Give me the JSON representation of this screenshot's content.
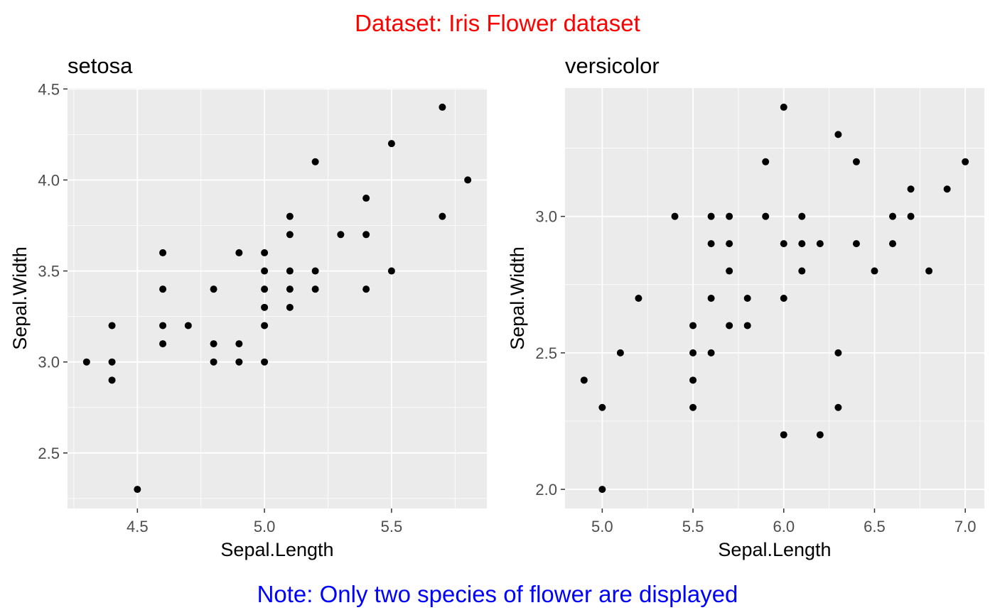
{
  "figure": {
    "title": "Dataset: Iris Flower dataset",
    "caption": "Note: Only two species of flower are displayed",
    "title_color": "#ff0000",
    "caption_color": "#0000ff",
    "panel_bg": "#ebebeb",
    "grid_color": "#ffffff",
    "point_color": "#000000"
  },
  "chart_data": [
    {
      "type": "scatter",
      "title": "setosa",
      "xlabel": "Sepal.Length",
      "ylabel": "Sepal.Width",
      "xlim": [
        4.225,
        5.875
      ],
      "ylim": [
        2.195,
        4.505
      ],
      "x_ticks": [
        4.5,
        5.0,
        5.5
      ],
      "x_tick_labels": [
        "4.5",
        "5.0",
        "5.5"
      ],
      "y_ticks": [
        2.5,
        3.0,
        3.5,
        4.0,
        4.5
      ],
      "y_tick_labels": [
        "2.5",
        "3.0",
        "3.5",
        "4.0",
        "4.5"
      ],
      "grid": true,
      "points": [
        [
          4.3,
          3.0
        ],
        [
          4.4,
          2.9
        ],
        [
          4.4,
          3.0
        ],
        [
          4.4,
          3.2
        ],
        [
          4.5,
          2.3
        ],
        [
          4.6,
          3.1
        ],
        [
          4.6,
          3.2
        ],
        [
          4.6,
          3.4
        ],
        [
          4.6,
          3.6
        ],
        [
          4.7,
          3.2
        ],
        [
          4.8,
          3.0
        ],
        [
          4.8,
          3.1
        ],
        [
          4.8,
          3.4
        ],
        [
          4.9,
          3.0
        ],
        [
          4.9,
          3.1
        ],
        [
          4.9,
          3.6
        ],
        [
          5.0,
          3.0
        ],
        [
          5.0,
          3.2
        ],
        [
          5.0,
          3.3
        ],
        [
          5.0,
          3.4
        ],
        [
          5.0,
          3.5
        ],
        [
          5.0,
          3.6
        ],
        [
          5.1,
          3.3
        ],
        [
          5.1,
          3.4
        ],
        [
          5.1,
          3.5
        ],
        [
          5.1,
          3.7
        ],
        [
          5.1,
          3.8
        ],
        [
          5.2,
          3.4
        ],
        [
          5.2,
          3.5
        ],
        [
          5.2,
          4.1
        ],
        [
          5.3,
          3.7
        ],
        [
          5.4,
          3.4
        ],
        [
          5.4,
          3.7
        ],
        [
          5.4,
          3.9
        ],
        [
          5.5,
          3.5
        ],
        [
          5.5,
          4.2
        ],
        [
          5.7,
          3.8
        ],
        [
          5.7,
          4.4
        ],
        [
          5.8,
          4.0
        ]
      ]
    },
    {
      "type": "scatter",
      "title": "versicolor",
      "xlabel": "Sepal.Length",
      "ylabel": "Sepal.Width",
      "xlim": [
        4.795,
        7.105
      ],
      "ylim": [
        1.93,
        3.47
      ],
      "x_ticks": [
        5.0,
        5.5,
        6.0,
        6.5,
        7.0
      ],
      "x_tick_labels": [
        "5.0",
        "5.5",
        "6.0",
        "6.5",
        "7.0"
      ],
      "y_ticks": [
        2.0,
        2.5,
        3.0
      ],
      "y_tick_labels": [
        "2.0",
        "2.5",
        "3.0"
      ],
      "grid": true,
      "points": [
        [
          4.9,
          2.4
        ],
        [
          5.0,
          2.0
        ],
        [
          5.0,
          2.3
        ],
        [
          5.1,
          2.5
        ],
        [
          5.2,
          2.7
        ],
        [
          5.4,
          3.0
        ],
        [
          5.5,
          2.3
        ],
        [
          5.5,
          2.4
        ],
        [
          5.5,
          2.5
        ],
        [
          5.5,
          2.6
        ],
        [
          5.6,
          2.5
        ],
        [
          5.6,
          2.7
        ],
        [
          5.6,
          2.9
        ],
        [
          5.6,
          3.0
        ],
        [
          5.7,
          2.6
        ],
        [
          5.7,
          2.8
        ],
        [
          5.7,
          2.9
        ],
        [
          5.7,
          3.0
        ],
        [
          5.8,
          2.6
        ],
        [
          5.8,
          2.7
        ],
        [
          5.9,
          3.0
        ],
        [
          5.9,
          3.2
        ],
        [
          6.0,
          2.2
        ],
        [
          6.0,
          2.7
        ],
        [
          6.0,
          2.9
        ],
        [
          6.0,
          3.4
        ],
        [
          6.1,
          2.8
        ],
        [
          6.1,
          2.9
        ],
        [
          6.1,
          3.0
        ],
        [
          6.2,
          2.2
        ],
        [
          6.2,
          2.9
        ],
        [
          6.3,
          2.3
        ],
        [
          6.3,
          2.5
        ],
        [
          6.3,
          3.3
        ],
        [
          6.4,
          2.9
        ],
        [
          6.4,
          3.2
        ],
        [
          6.5,
          2.8
        ],
        [
          6.6,
          2.9
        ],
        [
          6.6,
          3.0
        ],
        [
          6.7,
          3.0
        ],
        [
          6.7,
          3.1
        ],
        [
          6.8,
          2.8
        ],
        [
          6.9,
          3.1
        ],
        [
          7.0,
          3.2
        ]
      ]
    }
  ]
}
